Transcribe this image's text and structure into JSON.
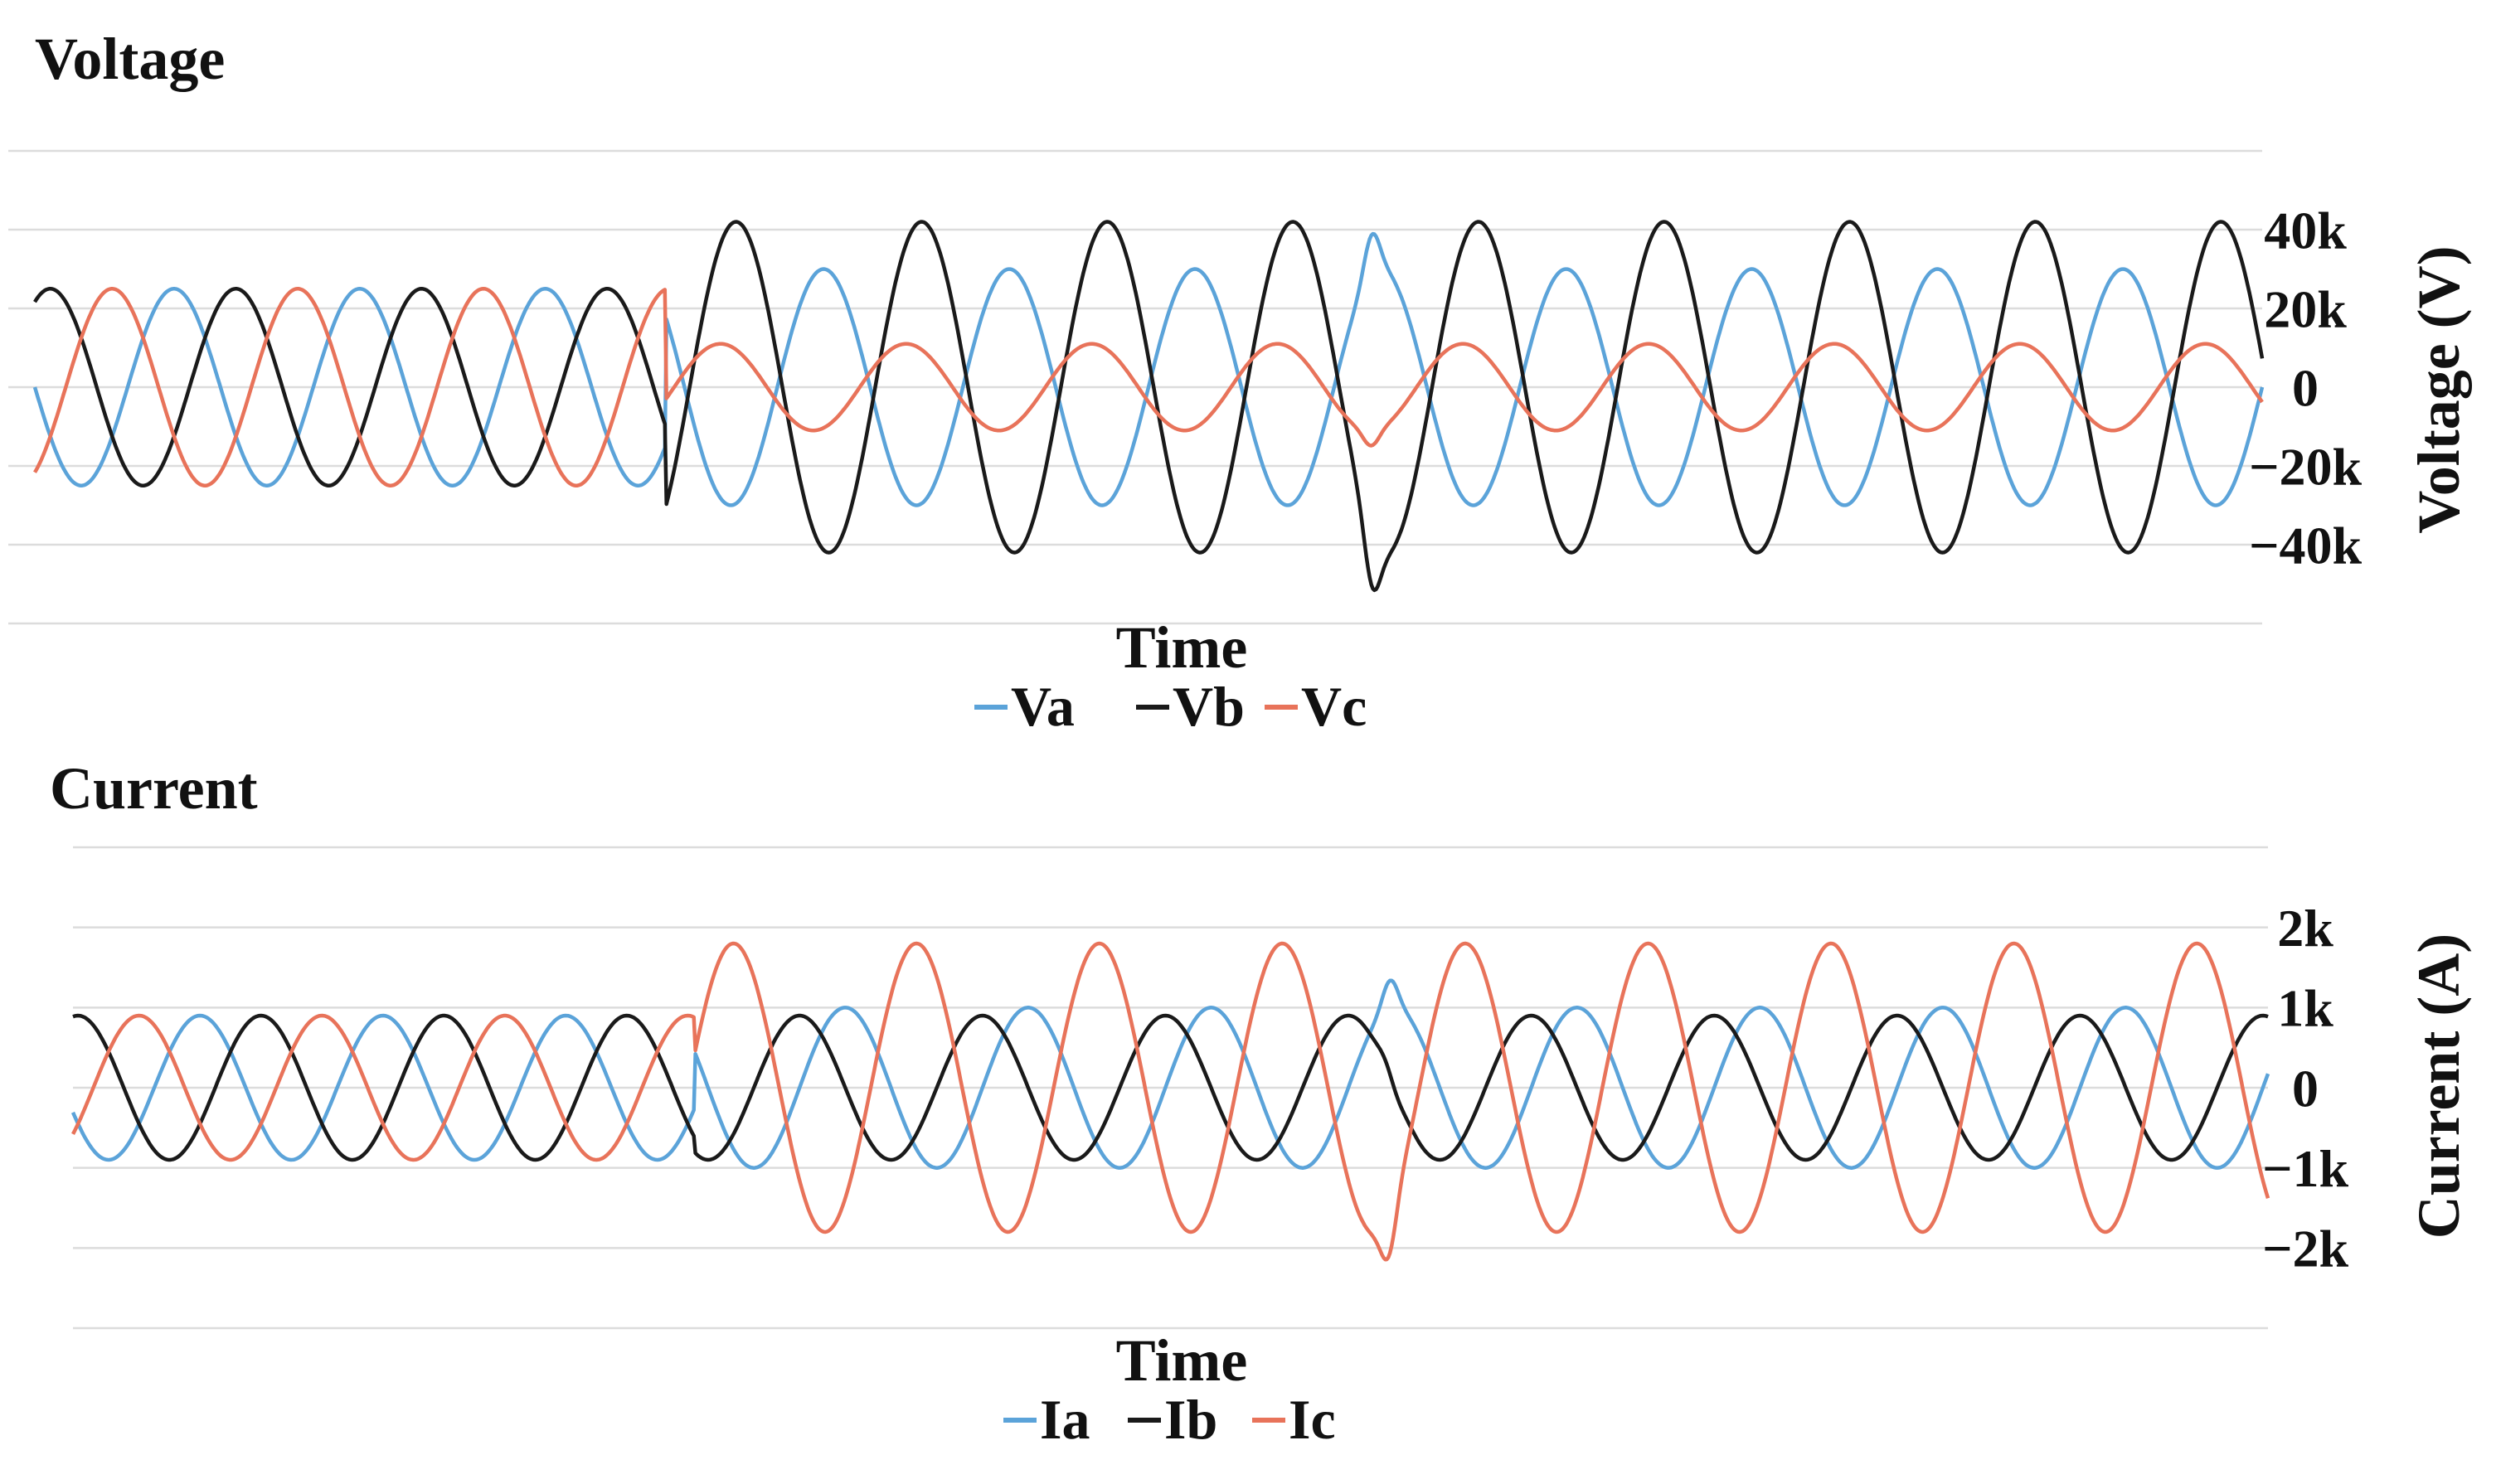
{
  "chart_data": [
    {
      "type": "line",
      "title": "Voltage",
      "xlabel": "Time",
      "ylabel": "Voltage (V)",
      "ylim": [
        -60000,
        60000
      ],
      "yticks": [
        40000,
        20000,
        0,
        -20000,
        -40000
      ],
      "ytick_labels": [
        "40k",
        "20k",
        "0",
        "−20k",
        "−40k"
      ],
      "grid": true,
      "legend_position": "bottom",
      "time_range": [
        0,
        1
      ],
      "event_time": 0.283,
      "second_event_time": 0.6,
      "series": [
        {
          "name": "Va",
          "color": "#5ba3d9",
          "pre_amplitude": 25000,
          "post_amplitude": 30000,
          "cycles": 12,
          "pre_phase_deg": 180,
          "post_phase_deg": 0
        },
        {
          "name": "Vb",
          "color": "#1a1a1a",
          "pre_amplitude": 25000,
          "post_amplitude": 42000,
          "cycles": 12,
          "pre_phase_deg": 60,
          "post_phase_deg": 170
        },
        {
          "name": "Vc",
          "color": "#e8735a",
          "pre_amplitude": 25000,
          "post_amplitude": 11000,
          "cycles": 12,
          "pre_phase_deg": 300,
          "post_phase_deg": 200
        }
      ]
    },
    {
      "type": "line",
      "title": "Current",
      "xlabel": "Time",
      "ylabel": "Current (A)",
      "ylim": [
        -3000,
        3000
      ],
      "yticks": [
        2000,
        1000,
        0,
        -1000,
        -2000
      ],
      "ytick_labels": [
        "2k",
        "1k",
        "0",
        "−1k",
        "−2k"
      ],
      "grid": true,
      "legend_position": "bottom",
      "time_range": [
        0,
        1
      ],
      "event_time": 0.283,
      "second_event_time": 0.6,
      "series": [
        {
          "name": "Ia",
          "color": "#5ba3d9",
          "pre_amplitude": 900,
          "post_amplitude": 1000,
          "cycles": 12,
          "pre_phase_deg": 200,
          "post_phase_deg": 10
        },
        {
          "name": "Ib",
          "color": "#1a1a1a",
          "pre_amplitude": 900,
          "post_amplitude": 900,
          "cycles": 12,
          "pre_phase_deg": 80,
          "post_phase_deg": 100
        },
        {
          "name": "Ic",
          "color": "#e8735a",
          "pre_amplitude": 900,
          "post_amplitude": 1800,
          "cycles": 12,
          "pre_phase_deg": 320,
          "post_phase_deg": 230
        }
      ]
    }
  ]
}
